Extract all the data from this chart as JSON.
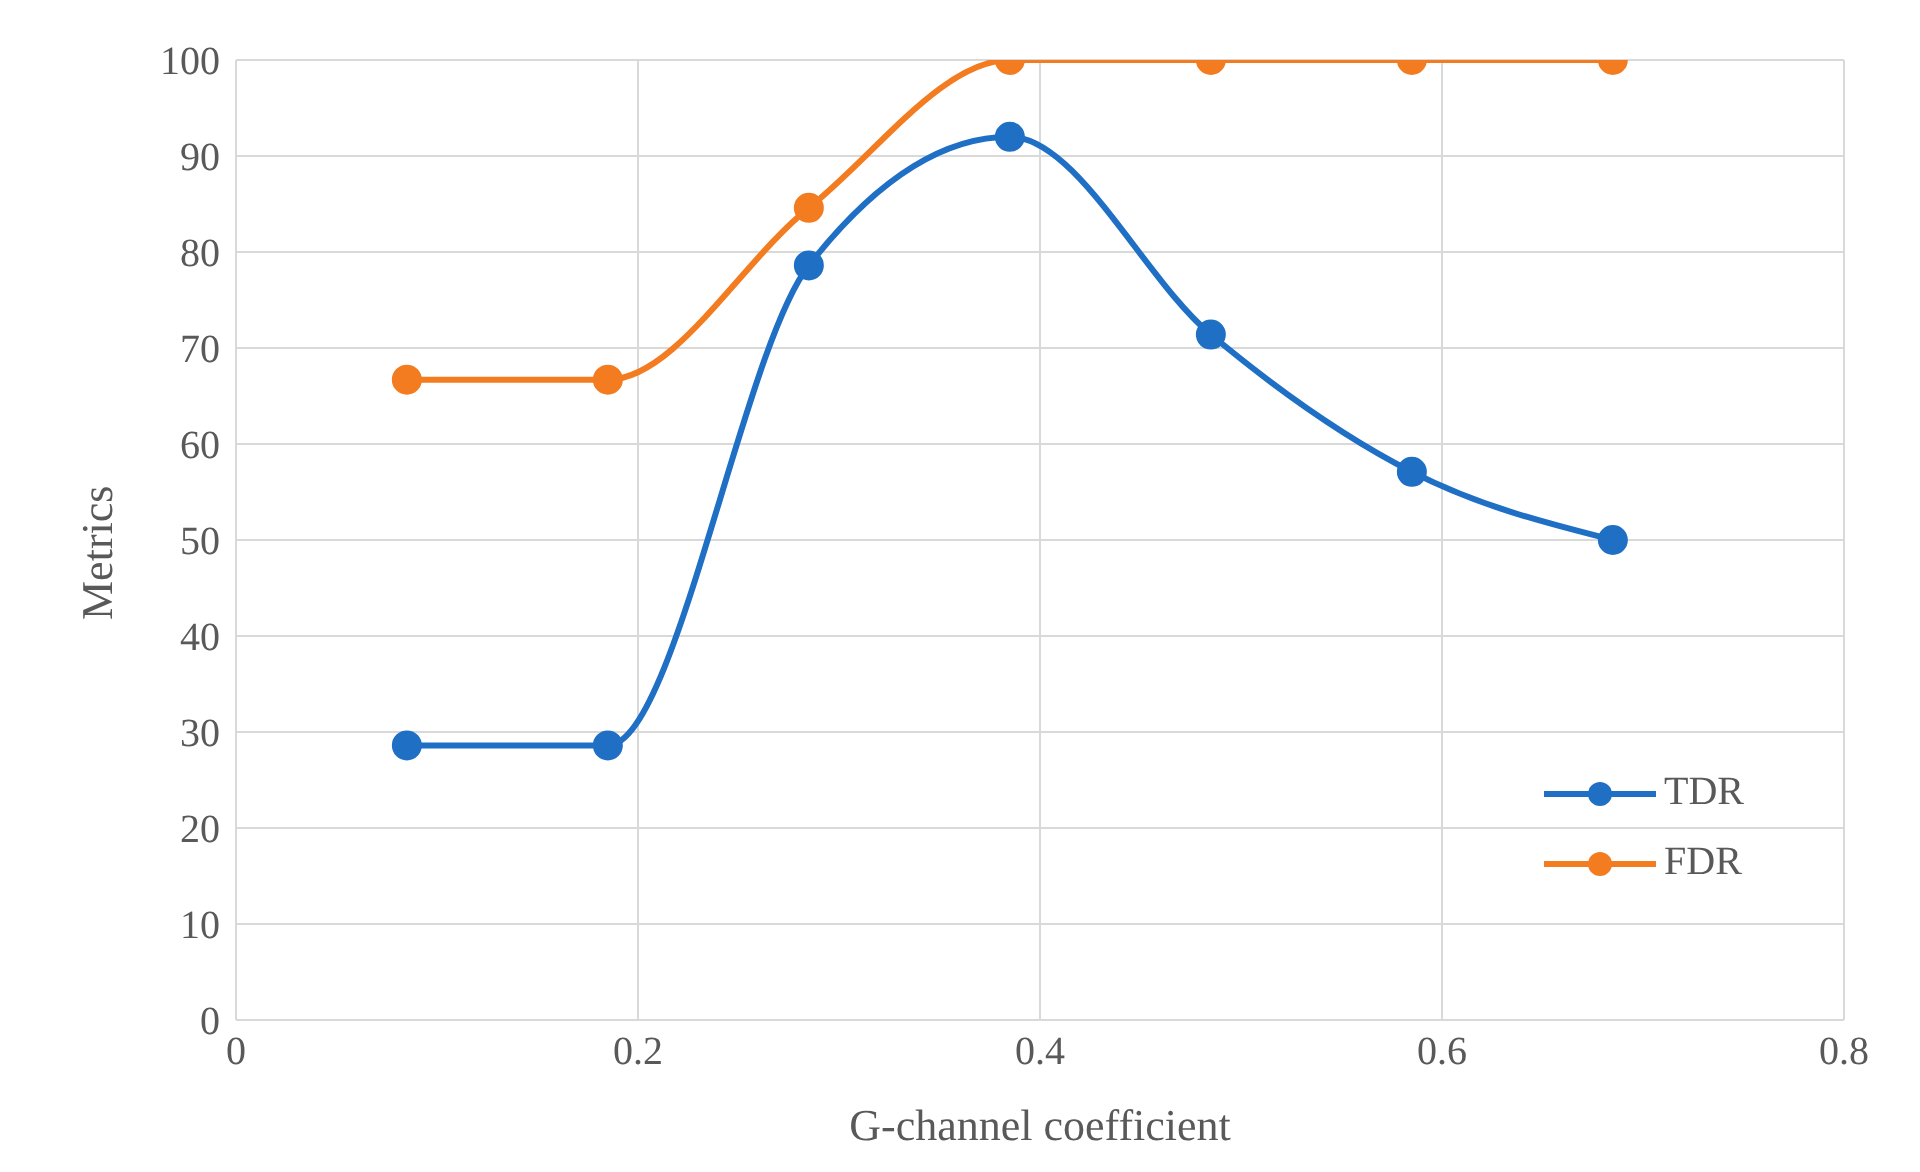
{
  "chart_data": {
    "type": "line",
    "xlabel": "G-channel coefficient",
    "ylabel": "Metrics",
    "x": [
      0.085,
      0.185,
      0.285,
      0.385,
      0.485,
      0.585,
      0.685
    ],
    "series": [
      {
        "name": "TDR",
        "color": "#1f6fc5",
        "values": [
          28.6,
          28.6,
          78.6,
          92.0,
          71.4,
          57.1,
          50.0
        ]
      },
      {
        "name": "FDR",
        "color": "#f47c20",
        "values": [
          66.7,
          66.7,
          84.6,
          100,
          100,
          100,
          100
        ]
      }
    ],
    "xlim": [
      0,
      0.8
    ],
    "xticks": [
      0,
      0.2,
      0.4,
      0.6,
      0.8
    ],
    "ylim": [
      0,
      100
    ],
    "yticks": [
      0,
      10,
      20,
      30,
      40,
      50,
      60,
      70,
      80,
      90,
      100
    ],
    "grid": true,
    "legend": "bottom right",
    "marker": "circle",
    "line_style": "solid"
  }
}
